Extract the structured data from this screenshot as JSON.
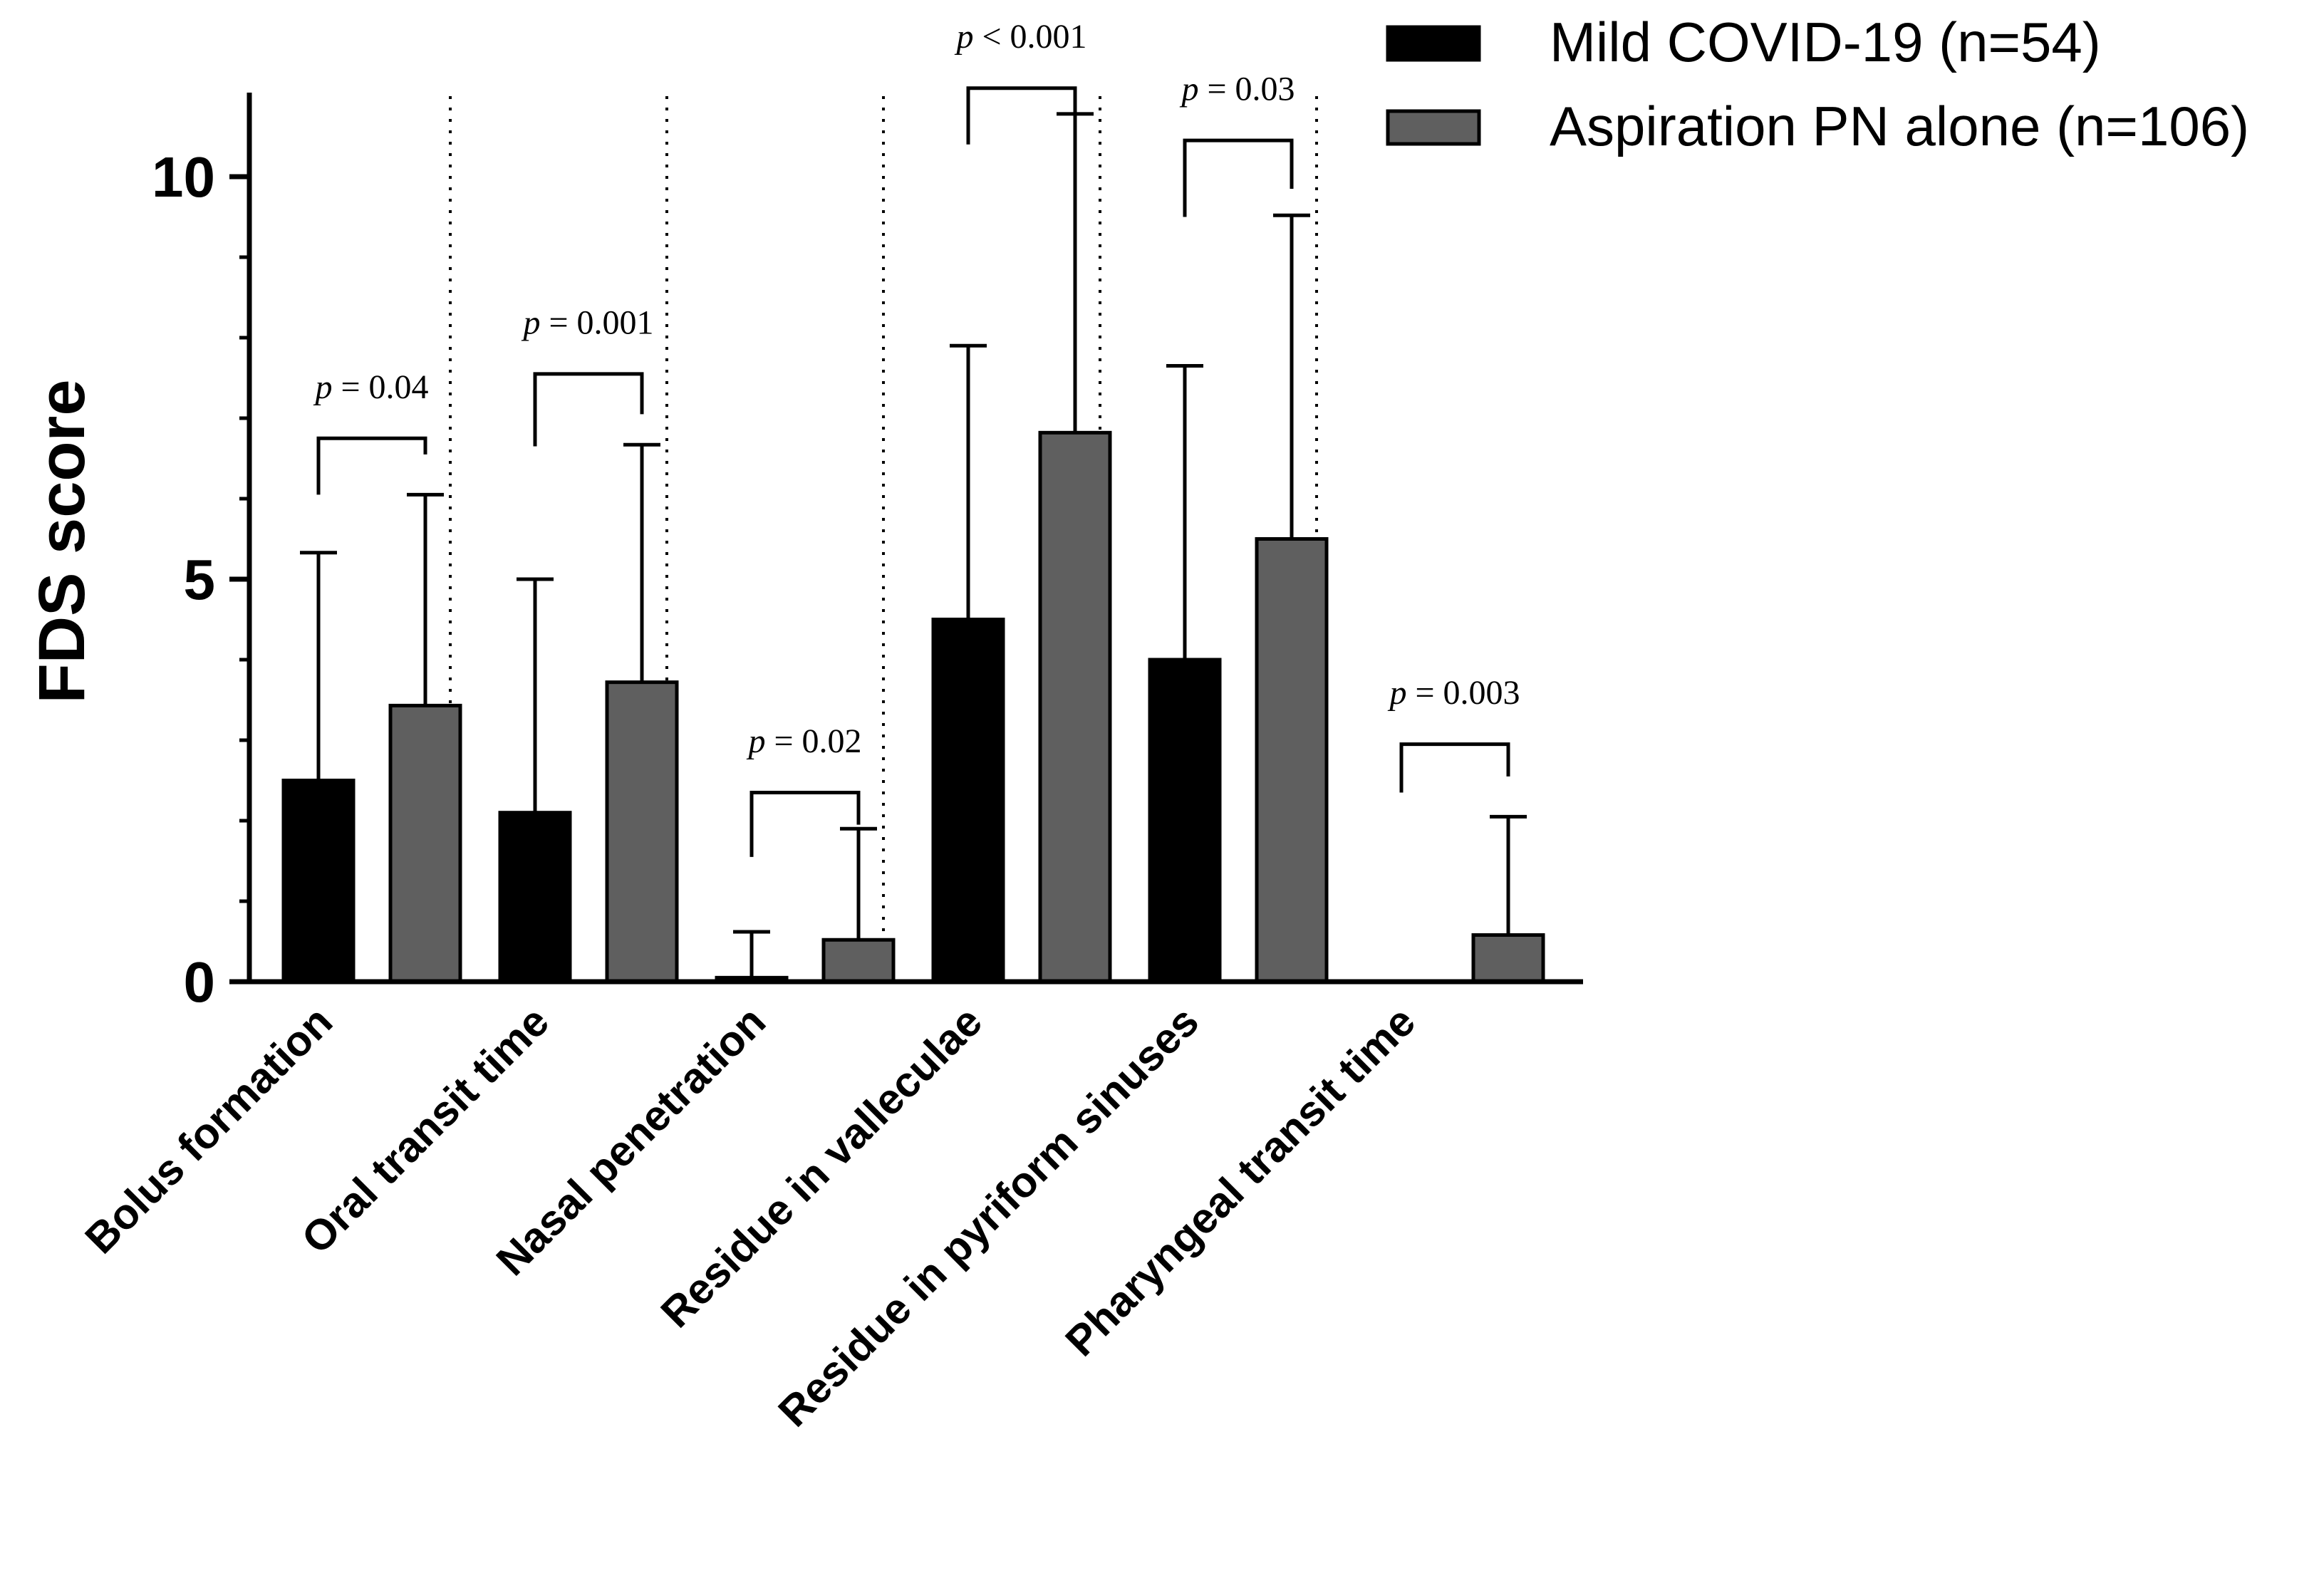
{
  "chart_data": {
    "type": "bar",
    "ylabel": "FDS score",
    "ylim": [
      0,
      11
    ],
    "yticks": [
      0,
      5,
      10
    ],
    "grid": false,
    "legend_position": "top-right",
    "categories": [
      "Bolus formation",
      "Oral transit time",
      "Nasal penetration",
      "Residue in valleculae",
      "Residue in pyriform sinuses",
      "Pharyngeal transit time"
    ],
    "series": [
      {
        "name": "Mild COVID-19 (n=54)",
        "color": "#000000",
        "values": [
          2.5,
          2.1,
          0.05,
          4.5,
          4.0,
          0.0
        ],
        "error_upper": [
          5.33,
          5.0,
          0.62,
          7.9,
          7.65,
          0.0
        ]
      },
      {
        "name": "Aspiration PN alone (n=106)",
        "color": "#5f5f5f",
        "values": [
          3.43,
          3.72,
          0.52,
          6.82,
          5.5,
          0.58
        ],
        "error_upper": [
          6.05,
          6.67,
          1.9,
          10.78,
          9.52,
          2.05
        ]
      }
    ],
    "annotations": [
      {
        "category": 0,
        "prefix": "p",
        "text": " = 0.04",
        "bracket_y": 6.75,
        "left_y": 6.05,
        "right_y": 6.55,
        "text_y": 7.25
      },
      {
        "category": 1,
        "prefix": "p",
        "text": " = 0.001",
        "bracket_y": 7.55,
        "left_y": 6.65,
        "right_y": 7.05,
        "text_y": 8.05
      },
      {
        "category": 2,
        "prefix": "p",
        "text": " = 0.02",
        "bracket_y": 2.35,
        "left_y": 1.55,
        "right_y": 1.95,
        "text_y": 2.85
      },
      {
        "category": 3,
        "prefix": "p",
        "text": " < 0.001",
        "bracket_y": 11.1,
        "left_y": 10.4,
        "right_y": 10.8,
        "text_y": 11.6
      },
      {
        "category": 4,
        "prefix": "p",
        "text": " = 0.03",
        "bracket_y": 10.45,
        "left_y": 9.5,
        "right_y": 9.85,
        "text_y": 10.95
      },
      {
        "category": 5,
        "prefix": "p",
        "text": " = 0.003",
        "bracket_y": 2.95,
        "left_y": 2.35,
        "right_y": 2.55,
        "text_y": 3.45
      }
    ]
  }
}
